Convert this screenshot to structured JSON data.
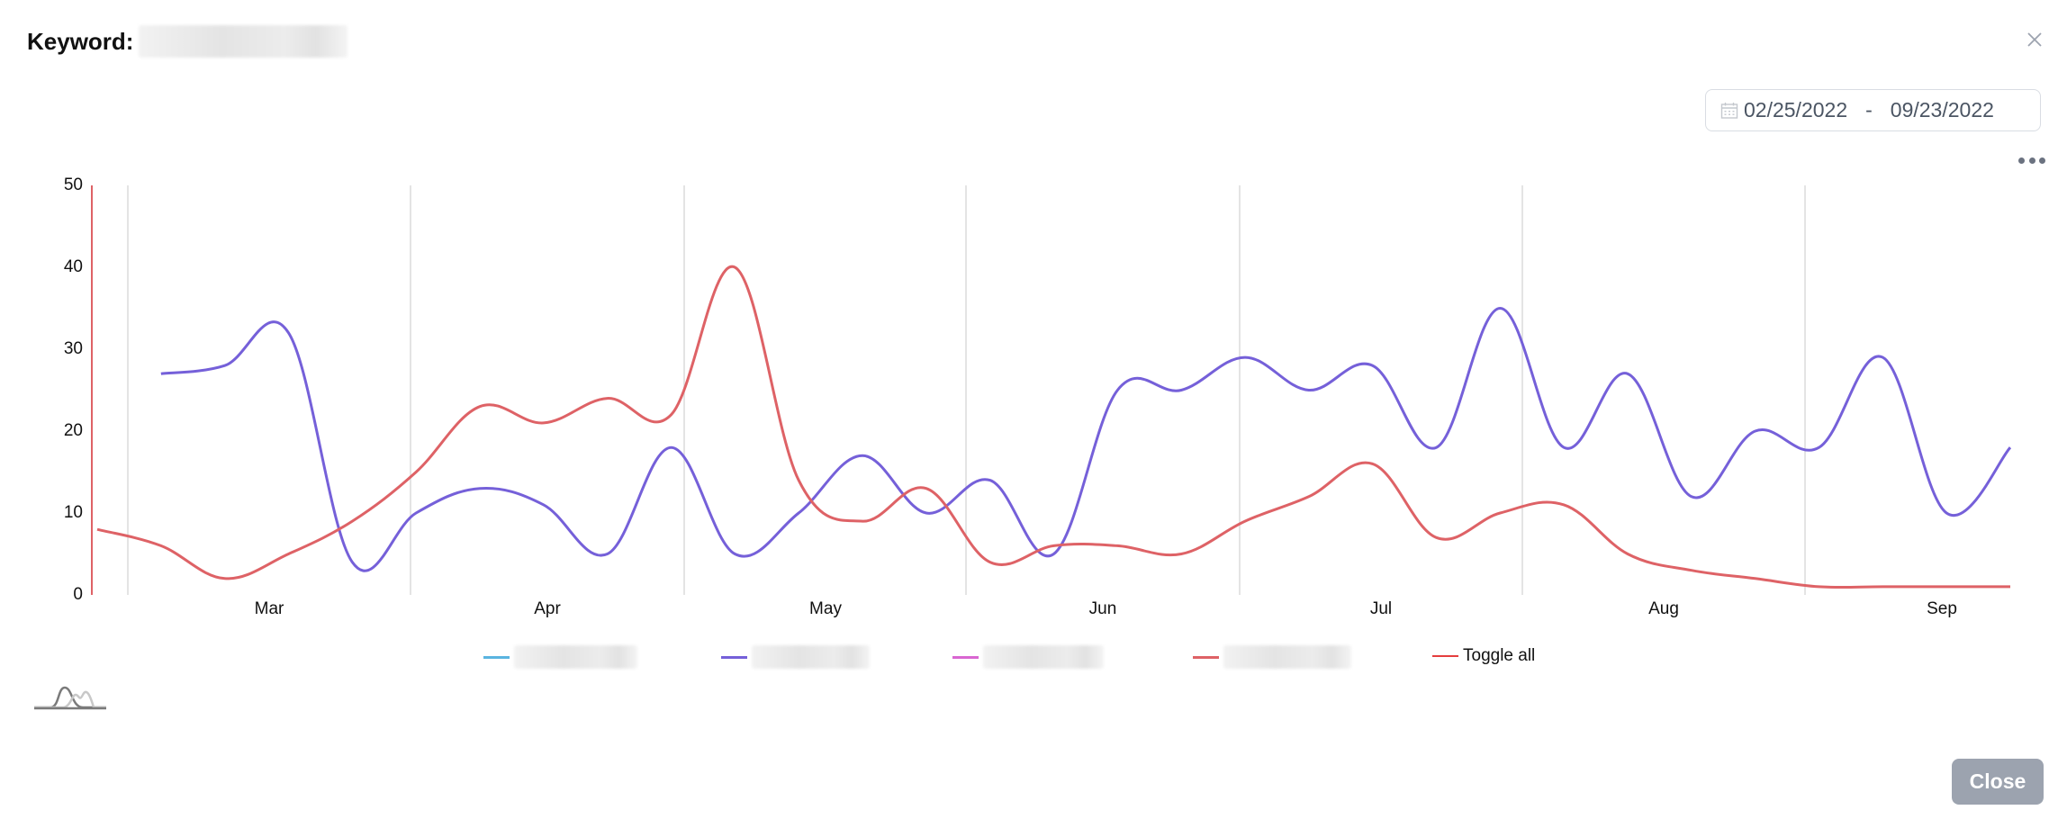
{
  "header": {
    "title_label": "Keyword:",
    "keyword_value_redacted": true,
    "close_icon": "close-x-icon"
  },
  "date_range": {
    "icon": "calendar-icon",
    "start": "02/25/2022",
    "separator": "-",
    "end": "09/23/2022"
  },
  "menu": {
    "icon": "more-horizontal-icon"
  },
  "legend": {
    "items": [
      {
        "label_redacted": true,
        "color": "#5ab4e0"
      },
      {
        "label_redacted": true,
        "color": "#7560d9"
      },
      {
        "label_redacted": true,
        "color": "#d966d1"
      },
      {
        "label_redacted": true,
        "color": "#de6266"
      }
    ],
    "toggle_all": {
      "label": "Toggle all",
      "color": "#e53e3e"
    }
  },
  "footer": {
    "distribution_icon": "distribution-curve-icon",
    "close_button": "Close"
  },
  "chart_data": {
    "type": "line",
    "title": "",
    "xlabel": "",
    "ylabel": "",
    "ylim": [
      0,
      50
    ],
    "yticks": [
      0,
      10,
      20,
      30,
      40,
      50
    ],
    "x_tick_labels": [
      "Mar",
      "Apr",
      "May",
      "Jun",
      "Jul",
      "Aug",
      "Sep"
    ],
    "x_range": [
      "02/25/2022",
      "09/23/2022"
    ],
    "x_interval": "weekly",
    "grid": {
      "vertical": true,
      "horizontal": false
    },
    "legend_position": "bottom",
    "x": [
      "2022-02-25",
      "2022-03-04",
      "2022-03-11",
      "2022-03-18",
      "2022-03-25",
      "2022-04-01",
      "2022-04-08",
      "2022-04-15",
      "2022-04-22",
      "2022-04-29",
      "2022-05-06",
      "2022-05-13",
      "2022-05-20",
      "2022-05-27",
      "2022-06-03",
      "2022-06-10",
      "2022-06-17",
      "2022-06-24",
      "2022-07-01",
      "2022-07-08",
      "2022-07-15",
      "2022-07-22",
      "2022-07-29",
      "2022-08-05",
      "2022-08-12",
      "2022-08-19",
      "2022-08-26",
      "2022-09-02",
      "2022-09-09",
      "2022-09-16",
      "2022-09-23"
    ],
    "series": [
      {
        "name": "series-blue (redacted)",
        "color": "#5ab4e0",
        "values": []
      },
      {
        "name": "series-purple (redacted)",
        "color": "#7560d9",
        "values": [
          null,
          27,
          28,
          32,
          4,
          10,
          13,
          11,
          5,
          18,
          5,
          10,
          17,
          10,
          14,
          5,
          25,
          25,
          29,
          25,
          28,
          18,
          35,
          18,
          27,
          12,
          20,
          18,
          29,
          10,
          18
        ]
      },
      {
        "name": "series-pink (redacted)",
        "color": "#d966d1",
        "values": []
      },
      {
        "name": "series-red (redacted)",
        "color": "#de6266",
        "values": [
          8,
          6,
          2,
          5,
          9,
          15,
          23,
          21,
          24,
          22,
          40,
          14,
          9,
          13,
          4,
          6,
          6,
          5,
          9,
          12,
          16,
          7,
          10,
          11,
          5,
          3,
          2,
          1,
          1,
          1,
          1
        ]
      }
    ]
  }
}
